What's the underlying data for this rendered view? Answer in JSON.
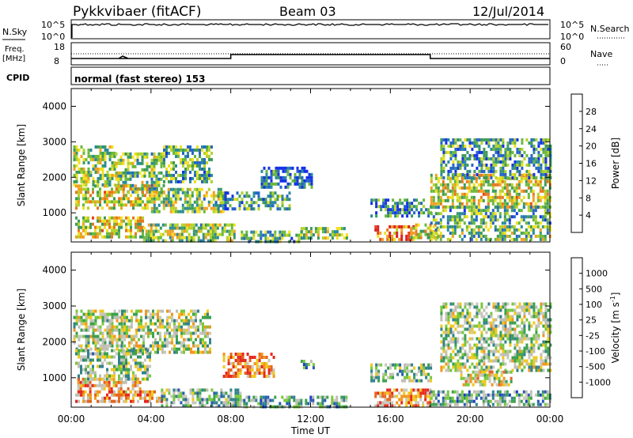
{
  "header": {
    "title": "Pykkvibaer (fitACF)",
    "beam": "Beam 03",
    "date": "12/Jul/2014"
  },
  "strip_nsky": {
    "left_label": "N.Sky",
    "right_label": "N.Search",
    "left_ticks": [
      "10^5",
      "10^0"
    ],
    "right_ticks": [
      "10^5",
      "10^0"
    ]
  },
  "strip_freq": {
    "left_label_1": "Freq.",
    "left_label_2": "[MHz]",
    "right_label": "Nave",
    "left_ticks": [
      "18",
      "8"
    ],
    "right_ticks": [
      "60",
      "0"
    ],
    "cpid_label": "CPID"
  },
  "cpid_text": "normal (fast stereo) 153",
  "chart_data": [
    {
      "type": "heatmap",
      "name": "power",
      "ylabel": "Slant Range [km]",
      "xlabel": "",
      "ylim": [
        180,
        4500
      ],
      "yticks": [
        "1000",
        "2000",
        "3000",
        "4000"
      ],
      "ytick_values": [
        1000,
        2000,
        3000,
        4000
      ],
      "xlim": [
        0,
        24
      ],
      "colorbar": {
        "label": "Power [dB]",
        "ticks": [
          "4",
          "8",
          "12",
          "16",
          "20",
          "24",
          "28"
        ],
        "colors": [
          "#1432e6",
          "#2664c8",
          "#2a8a9a",
          "#3c9a5a",
          "#6ab83c",
          "#b4d22a",
          "#f0e11e",
          "#f0a01e",
          "#e6781e",
          "#e6461e",
          "#dc1e1e"
        ]
      },
      "patches": [
        {
          "t": [
            0.1,
            2.2
          ],
          "r": [
            1800,
            2900
          ],
          "level": 0.45
        },
        {
          "t": [
            2.2,
            4.6
          ],
          "r": [
            1600,
            2700
          ],
          "level": 0.4
        },
        {
          "t": [
            4.6,
            7.0
          ],
          "r": [
            1900,
            2900
          ],
          "level": 0.35
        },
        {
          "t": [
            0.2,
            4.0
          ],
          "r": [
            1100,
            1800
          ],
          "level": 0.55
        },
        {
          "t": [
            4.0,
            7.8
          ],
          "r": [
            1000,
            1700
          ],
          "level": 0.45
        },
        {
          "t": [
            0.2,
            3.6
          ],
          "r": [
            350,
            900
          ],
          "level": 0.55
        },
        {
          "t": [
            3.6,
            8.2
          ],
          "r": [
            250,
            700
          ],
          "level": 0.45
        },
        {
          "t": [
            7.2,
            11.0
          ],
          "r": [
            1100,
            1600
          ],
          "level": 0.3
        },
        {
          "t": [
            8.5,
            11.5
          ],
          "r": [
            200,
            500
          ],
          "level": 0.35
        },
        {
          "t": [
            11.5,
            13.8
          ],
          "r": [
            300,
            600
          ],
          "level": 0.45
        },
        {
          "t": [
            9.5,
            12.0
          ],
          "r": [
            1700,
            2300
          ],
          "level": 0.2
        },
        {
          "t": [
            15.2,
            17.2
          ],
          "r": [
            250,
            650
          ],
          "level": 0.8
        },
        {
          "t": [
            17.0,
            18.4
          ],
          "r": [
            300,
            700
          ],
          "level": 0.55
        },
        {
          "t": [
            15.0,
            18.0
          ],
          "r": [
            900,
            1400
          ],
          "level": 0.25
        },
        {
          "t": [
            18.0,
            24.0
          ],
          "r": [
            1200,
            2100
          ],
          "level": 0.55
        },
        {
          "t": [
            18.5,
            24.0
          ],
          "r": [
            2000,
            3100
          ],
          "level": 0.3
        },
        {
          "t": [
            18.0,
            24.0
          ],
          "r": [
            700,
            1200
          ],
          "level": 0.35
        },
        {
          "t": [
            18.0,
            24.0
          ],
          "r": [
            250,
            650
          ],
          "level": 0.4
        }
      ]
    },
    {
      "type": "heatmap",
      "name": "velocity",
      "ylabel": "Slant Range [km]",
      "xlabel": "Time UT",
      "ylim": [
        180,
        4500
      ],
      "yticks": [
        "1000",
        "2000",
        "3000",
        "4000"
      ],
      "ytick_values": [
        1000,
        2000,
        3000,
        4000
      ],
      "xlim": [
        0,
        24
      ],
      "xticks": [
        "00:00",
        "04:00",
        "08:00",
        "12:00",
        "16:00",
        "20:00",
        "00:00"
      ],
      "xtick_values": [
        0,
        4,
        8,
        12,
        16,
        20,
        24
      ],
      "colorbar": {
        "label": "Velocity [m s",
        "label_sup": "-1",
        "label_end": "]",
        "ticks": [
          "1000",
          "500",
          "100",
          "25",
          "-25",
          "-100",
          "-500",
          "-1000"
        ],
        "colors": [
          "#1e3cc8",
          "#285ab4",
          "#32828c",
          "#3ca050",
          "#78c83c",
          "#bebeb4",
          "#c8c8be",
          "#f0c81e",
          "#f0961e",
          "#e6641e",
          "#e6281e"
        ]
      },
      "patches": [
        {
          "t": [
            0.1,
            2.5
          ],
          "r": [
            1800,
            2900
          ],
          "level": 0.5
        },
        {
          "t": [
            2.5,
            7.0
          ],
          "r": [
            1700,
            2900
          ],
          "level": 0.5
        },
        {
          "t": [
            0.2,
            4.0
          ],
          "r": [
            1000,
            1800
          ],
          "level": 0.45
        },
        {
          "t": [
            0.3,
            3.5
          ],
          "r": [
            600,
            1000
          ],
          "level": 0.7
        },
        {
          "t": [
            0.2,
            4.5
          ],
          "r": [
            300,
            650
          ],
          "level": 0.75
        },
        {
          "t": [
            4.5,
            8.5
          ],
          "r": [
            250,
            700
          ],
          "level": 0.4
        },
        {
          "t": [
            7.6,
            10.2
          ],
          "r": [
            1000,
            1700
          ],
          "level": 0.85
        },
        {
          "t": [
            8.5,
            13.8
          ],
          "r": [
            200,
            500
          ],
          "level": 0.35
        },
        {
          "t": [
            11.5,
            12.2
          ],
          "r": [
            1300,
            1500
          ],
          "level": 0.2
        },
        {
          "t": [
            15.2,
            18.0
          ],
          "r": [
            250,
            700
          ],
          "level": 0.8
        },
        {
          "t": [
            15.0,
            18.0
          ],
          "r": [
            900,
            1400
          ],
          "level": 0.45
        },
        {
          "t": [
            18.5,
            24.0
          ],
          "r": [
            1200,
            3100
          ],
          "level": 0.48
        },
        {
          "t": [
            19.5,
            22.0
          ],
          "r": [
            800,
            1200
          ],
          "level": 0.6
        },
        {
          "t": [
            18.0,
            24.0
          ],
          "r": [
            250,
            650
          ],
          "level": 0.35
        }
      ]
    }
  ]
}
